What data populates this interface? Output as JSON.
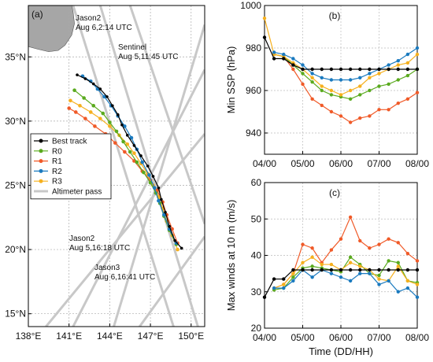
{
  "colors": {
    "best": "#000000",
    "R0": "#5aaa1e",
    "R1": "#f05a28",
    "R2": "#1a7abf",
    "R3": "#f6b01e",
    "altimeter": "#c8c8c8",
    "land": "#a6a6a6"
  },
  "chart_data": [
    {
      "type": "scatter",
      "panel_label": "(a)",
      "xlabel": "",
      "ylabel": "",
      "xlim": [
        138,
        151
      ],
      "ylim": [
        14,
        39
      ],
      "x_ticks": [
        138,
        141,
        144,
        147,
        150
      ],
      "x_tick_labels": [
        "138°E",
        "141°E",
        "144°E",
        "147°E",
        "150°E"
      ],
      "y_ticks": [
        15,
        20,
        25,
        30,
        35
      ],
      "y_tick_labels": [
        "15°N",
        "20°N",
        "25°N",
        "30°N",
        "35°N"
      ],
      "grid": true,
      "legend": [
        {
          "key": "best",
          "label": "Best track"
        },
        {
          "key": "R0",
          "label": "R0"
        },
        {
          "key": "R1",
          "label": "R1"
        },
        {
          "key": "R2",
          "label": "R2"
        },
        {
          "key": "R3",
          "label": "R3"
        },
        {
          "key": "altimeter",
          "label": "Altimeter pass"
        }
      ],
      "legend_position": "center-left",
      "annotations": [
        {
          "label": "Jason2",
          "sub": "Aug 6,2:14 UTC"
        },
        {
          "label": "Sentinel",
          "sub": "Aug 5,11:45 UTC"
        },
        {
          "label": "Jason2",
          "sub": "Aug 5,16:18 UTC"
        },
        {
          "label": "Jason3",
          "sub": "Aug 6,16:41 UTC"
        }
      ],
      "altimeter_passes": [
        [
          [
            141.3,
            39
          ],
          [
            148.7,
            14
          ]
        ],
        [
          [
            143.3,
            39
          ],
          [
            150.5,
            14
          ]
        ],
        [
          [
            145.5,
            39
          ],
          [
            151,
            22
          ]
        ],
        [
          [
            139.3,
            14
          ],
          [
            151,
            29
          ]
        ],
        [
          [
            141.3,
            14
          ],
          [
            151,
            34
          ]
        ],
        [
          [
            144.3,
            14
          ],
          [
            151,
            37.5
          ]
        ],
        [
          [
            146.2,
            14
          ],
          [
            151,
            21
          ]
        ]
      ],
      "series": [
        {
          "key": "best",
          "name": "Best track",
          "points": [
            [
              149.3,
              20.1
            ],
            [
              148.8,
              20.7
            ],
            [
              148.4,
              21.8
            ],
            [
              148.1,
              22.9
            ],
            [
              147.8,
              23.9
            ],
            [
              147.6,
              24.8
            ],
            [
              147.2,
              25.7
            ],
            [
              146.8,
              26.5
            ],
            [
              146.3,
              27.3
            ],
            [
              145.8,
              28.1
            ],
            [
              145.3,
              28.9
            ],
            [
              144.9,
              29.7
            ],
            [
              144.6,
              30.5
            ],
            [
              144.2,
              31.2
            ],
            [
              143.8,
              31.9
            ],
            [
              143.3,
              32.5
            ],
            [
              142.8,
              32.9
            ],
            [
              142.2,
              33.3
            ],
            [
              141.6,
              33.6
            ]
          ]
        },
        {
          "key": "R0",
          "name": "R0",
          "points": [
            [
              148.9,
              20.4
            ],
            [
              148.4,
              21.5
            ],
            [
              148.0,
              22.6
            ],
            [
              147.7,
              23.6
            ],
            [
              147.4,
              24.4
            ],
            [
              147.0,
              25.2
            ],
            [
              146.5,
              26.0
            ],
            [
              146.0,
              26.8
            ],
            [
              145.5,
              27.6
            ],
            [
              145.0,
              28.4
            ],
            [
              144.5,
              29.2
            ],
            [
              144.0,
              29.9
            ],
            [
              143.5,
              30.6
            ],
            [
              142.8,
              31.2
            ],
            [
              142.1,
              31.8
            ],
            [
              141.4,
              32.4
            ]
          ]
        },
        {
          "key": "R1",
          "name": "R1",
          "points": [
            [
              149.0,
              20.5
            ],
            [
              148.6,
              21.6
            ],
            [
              148.2,
              22.7
            ],
            [
              147.9,
              23.7
            ],
            [
              147.5,
              24.6
            ],
            [
              147.0,
              25.4
            ],
            [
              146.4,
              26.1
            ],
            [
              145.8,
              26.9
            ],
            [
              145.1,
              27.6
            ],
            [
              144.4,
              28.3
            ],
            [
              143.7,
              29.0
            ],
            [
              142.9,
              29.6
            ],
            [
              142.2,
              30.2
            ],
            [
              141.5,
              30.7
            ],
            [
              141.0,
              31.0
            ]
          ]
        },
        {
          "key": "R2",
          "name": "R2",
          "points": [
            [
              148.9,
              20.5
            ],
            [
              148.4,
              21.6
            ],
            [
              148.0,
              22.7
            ],
            [
              147.6,
              23.8
            ],
            [
              147.3,
              24.8
            ],
            [
              146.9,
              25.8
            ],
            [
              146.4,
              26.8
            ],
            [
              146.0,
              27.8
            ],
            [
              145.6,
              28.7
            ],
            [
              145.1,
              29.6
            ],
            [
              144.6,
              30.4
            ],
            [
              144.1,
              31.2
            ],
            [
              143.6,
              31.9
            ],
            [
              143.1,
              32.5
            ],
            [
              142.6,
              33.1
            ],
            [
              142.0,
              33.5
            ]
          ]
        },
        {
          "key": "R3",
          "name": "R3",
          "points": [
            [
              149.0,
              20.0
            ],
            [
              148.6,
              21.1
            ],
            [
              148.2,
              22.2
            ],
            [
              147.9,
              23.2
            ],
            [
              147.6,
              24.1
            ],
            [
              147.2,
              25.0
            ],
            [
              146.8,
              25.9
            ],
            [
              146.3,
              26.7
            ],
            [
              145.8,
              27.5
            ],
            [
              145.3,
              28.2
            ],
            [
              144.7,
              28.9
            ],
            [
              144.0,
              29.6
            ],
            [
              143.3,
              30.2
            ],
            [
              142.6,
              30.7
            ],
            [
              141.8,
              31.2
            ],
            [
              141.1,
              31.6
            ]
          ]
        }
      ],
      "land": [
        [
          138,
          39
        ],
        [
          138,
          35.8
        ],
        [
          138.7,
          35.6
        ],
        [
          139.5,
          35.4
        ],
        [
          140.2,
          35.5
        ],
        [
          140.7,
          35.9
        ],
        [
          141.2,
          36.7
        ],
        [
          141.4,
          37.6
        ],
        [
          141.3,
          38.5
        ],
        [
          141.2,
          39
        ]
      ]
    },
    {
      "type": "line",
      "panel_label": "(b)",
      "ylabel": "Min SSP (hPa)",
      "xlabel": "",
      "xlim": [
        0,
        16
      ],
      "ylim": [
        930,
        1000
      ],
      "x_ticks": [
        0,
        4,
        8,
        12,
        16
      ],
      "x_tick_labels": [
        "04/00",
        "05/00",
        "06/00",
        "07/00",
        "08/00"
      ],
      "y_ticks": [
        940,
        960,
        980,
        1000
      ],
      "grid": true,
      "x": [
        0,
        1,
        2,
        3,
        4,
        5,
        6,
        7,
        8,
        9,
        10,
        11,
        12,
        13,
        14,
        15,
        16
      ],
      "series": [
        {
          "key": "best",
          "values": [
            985,
            975,
            975,
            972,
            970,
            970,
            970,
            970,
            970,
            970,
            970,
            970,
            970,
            970,
            970,
            970,
            970
          ]
        },
        {
          "key": "R0",
          "values": [
            null,
            977,
            976,
            972,
            968,
            964,
            960,
            958,
            957,
            956,
            958,
            960,
            962,
            963,
            965,
            967,
            970
          ]
        },
        {
          "key": "R1",
          "values": [
            null,
            977,
            976,
            970,
            963,
            956,
            953,
            950,
            948,
            945,
            947,
            948,
            951,
            951,
            954,
            956,
            959
          ]
        },
        {
          "key": "R2",
          "values": [
            null,
            978,
            977,
            975,
            972,
            968,
            966,
            965,
            965,
            965,
            966,
            968,
            970,
            972,
            974,
            977,
            980
          ]
        },
        {
          "key": "R3",
          "values": [
            994,
            977,
            976,
            973,
            970,
            966,
            962,
            960,
            958,
            960,
            962,
            966,
            968,
            970,
            972,
            973,
            977
          ]
        }
      ]
    },
    {
      "type": "line",
      "panel_label": "(c)",
      "ylabel": "Max winds at 10 m (m/s)",
      "xlabel": "Time (DD/HH)",
      "xlim": [
        0,
        16
      ],
      "ylim": [
        20,
        60
      ],
      "x_ticks": [
        0,
        4,
        8,
        12,
        16
      ],
      "x_tick_labels": [
        "04/00",
        "05/00",
        "06/00",
        "07/00",
        "08/00"
      ],
      "y_ticks": [
        20,
        30,
        40,
        50,
        60
      ],
      "grid": true,
      "x": [
        0,
        1,
        2,
        3,
        4,
        5,
        6,
        7,
        8,
        9,
        10,
        11,
        12,
        13,
        14,
        15,
        16
      ],
      "series": [
        {
          "key": "best",
          "values": [
            28.5,
            33.5,
            33.5,
            36,
            36,
            36,
            36,
            36,
            36,
            36,
            36,
            36,
            36,
            36,
            36,
            36,
            36
          ]
        },
        {
          "key": "R0",
          "values": [
            null,
            30.5,
            31,
            34,
            36.5,
            37,
            36.5,
            36,
            35.5,
            39.5,
            37.5,
            35,
            34.5,
            38.5,
            38,
            33,
            32.5
          ]
        },
        {
          "key": "R1",
          "values": [
            null,
            31,
            32,
            35,
            43,
            42,
            38,
            41.5,
            44.5,
            50.5,
            44,
            42,
            43,
            44.5,
            43.5,
            40.5,
            38.5
          ]
        },
        {
          "key": "R2",
          "values": [
            null,
            31,
            31,
            33,
            36,
            34,
            36,
            35,
            34,
            33,
            35,
            35,
            32,
            33,
            30,
            31,
            28.5
          ]
        },
        {
          "key": "R3",
          "values": [
            null,
            31,
            32,
            35,
            38,
            39.5,
            37.5,
            37.5,
            36,
            38,
            37,
            36,
            33.5,
            33,
            37,
            33,
            32
          ]
        }
      ]
    }
  ]
}
